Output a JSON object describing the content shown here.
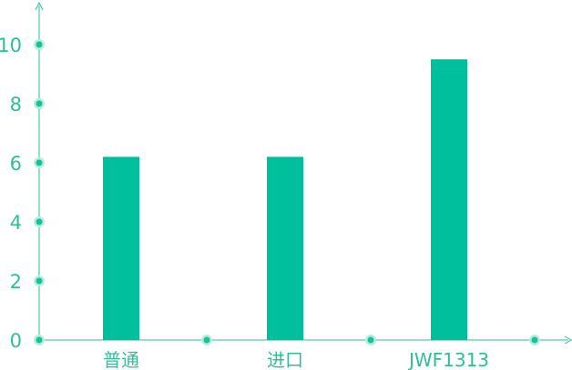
{
  "chart_data": {
    "type": "bar",
    "categories": [
      "普通",
      "进口",
      "JWF1313"
    ],
    "values": [
      6.2,
      6.2,
      9.5
    ],
    "ylim": [
      0,
      10
    ],
    "yticks": [
      0,
      2,
      4,
      6,
      8,
      10
    ],
    "yticklabels": [
      "0",
      "2",
      "4",
      "6",
      "8",
      "10"
    ],
    "title": "",
    "xlabel": "",
    "ylabel": "",
    "grid": false,
    "legend": "none"
  },
  "colors": {
    "bar": "#00BF9C",
    "axis": "#2DBF9A",
    "text": "#2DBF9A",
    "dot_outer": "#B6EEDC",
    "dot_inner": "#16C29C"
  }
}
